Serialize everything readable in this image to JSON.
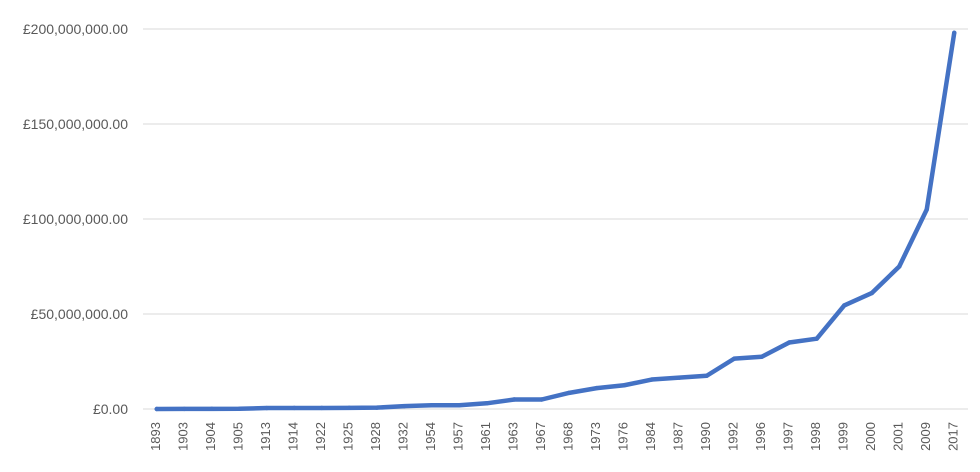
{
  "chart_data": {
    "type": "line",
    "title": "",
    "xlabel": "",
    "ylabel": "",
    "categories": [
      "1893",
      "1903",
      "1904",
      "1905",
      "1913",
      "1914",
      "1922",
      "1925",
      "1928",
      "1932",
      "1954",
      "1957",
      "1961",
      "1963",
      "1967",
      "1968",
      "1973",
      "1976",
      "1984",
      "1987",
      "1990",
      "1992",
      "1996",
      "1997",
      "1998",
      "1999",
      "2000",
      "2001",
      "2009",
      "2017"
    ],
    "series": [
      {
        "values": [
          0,
          50000,
          80000,
          100000,
          500000,
          550000,
          550000,
          600000,
          700000,
          1500000,
          2000000,
          2000000,
          3000000,
          5000000,
          5000000,
          8500000,
          11000000,
          12500000,
          15500000,
          16500000,
          17500000,
          26500000,
          27500000,
          35000000,
          37000000,
          54500000,
          61000000,
          75000000,
          105000000,
          198000000
        ]
      }
    ],
    "ylim": [
      0,
      200000000
    ],
    "yticks": [
      0,
      50000000,
      100000000,
      150000000,
      200000000
    ],
    "ytick_labels": [
      "£0.00",
      "£50,000,000.00",
      "£100,000,000.00",
      "£150,000,000.00",
      "£200,000,000.00"
    ],
    "grid": true,
    "legend": "none",
    "line_color": "#4472c4"
  }
}
